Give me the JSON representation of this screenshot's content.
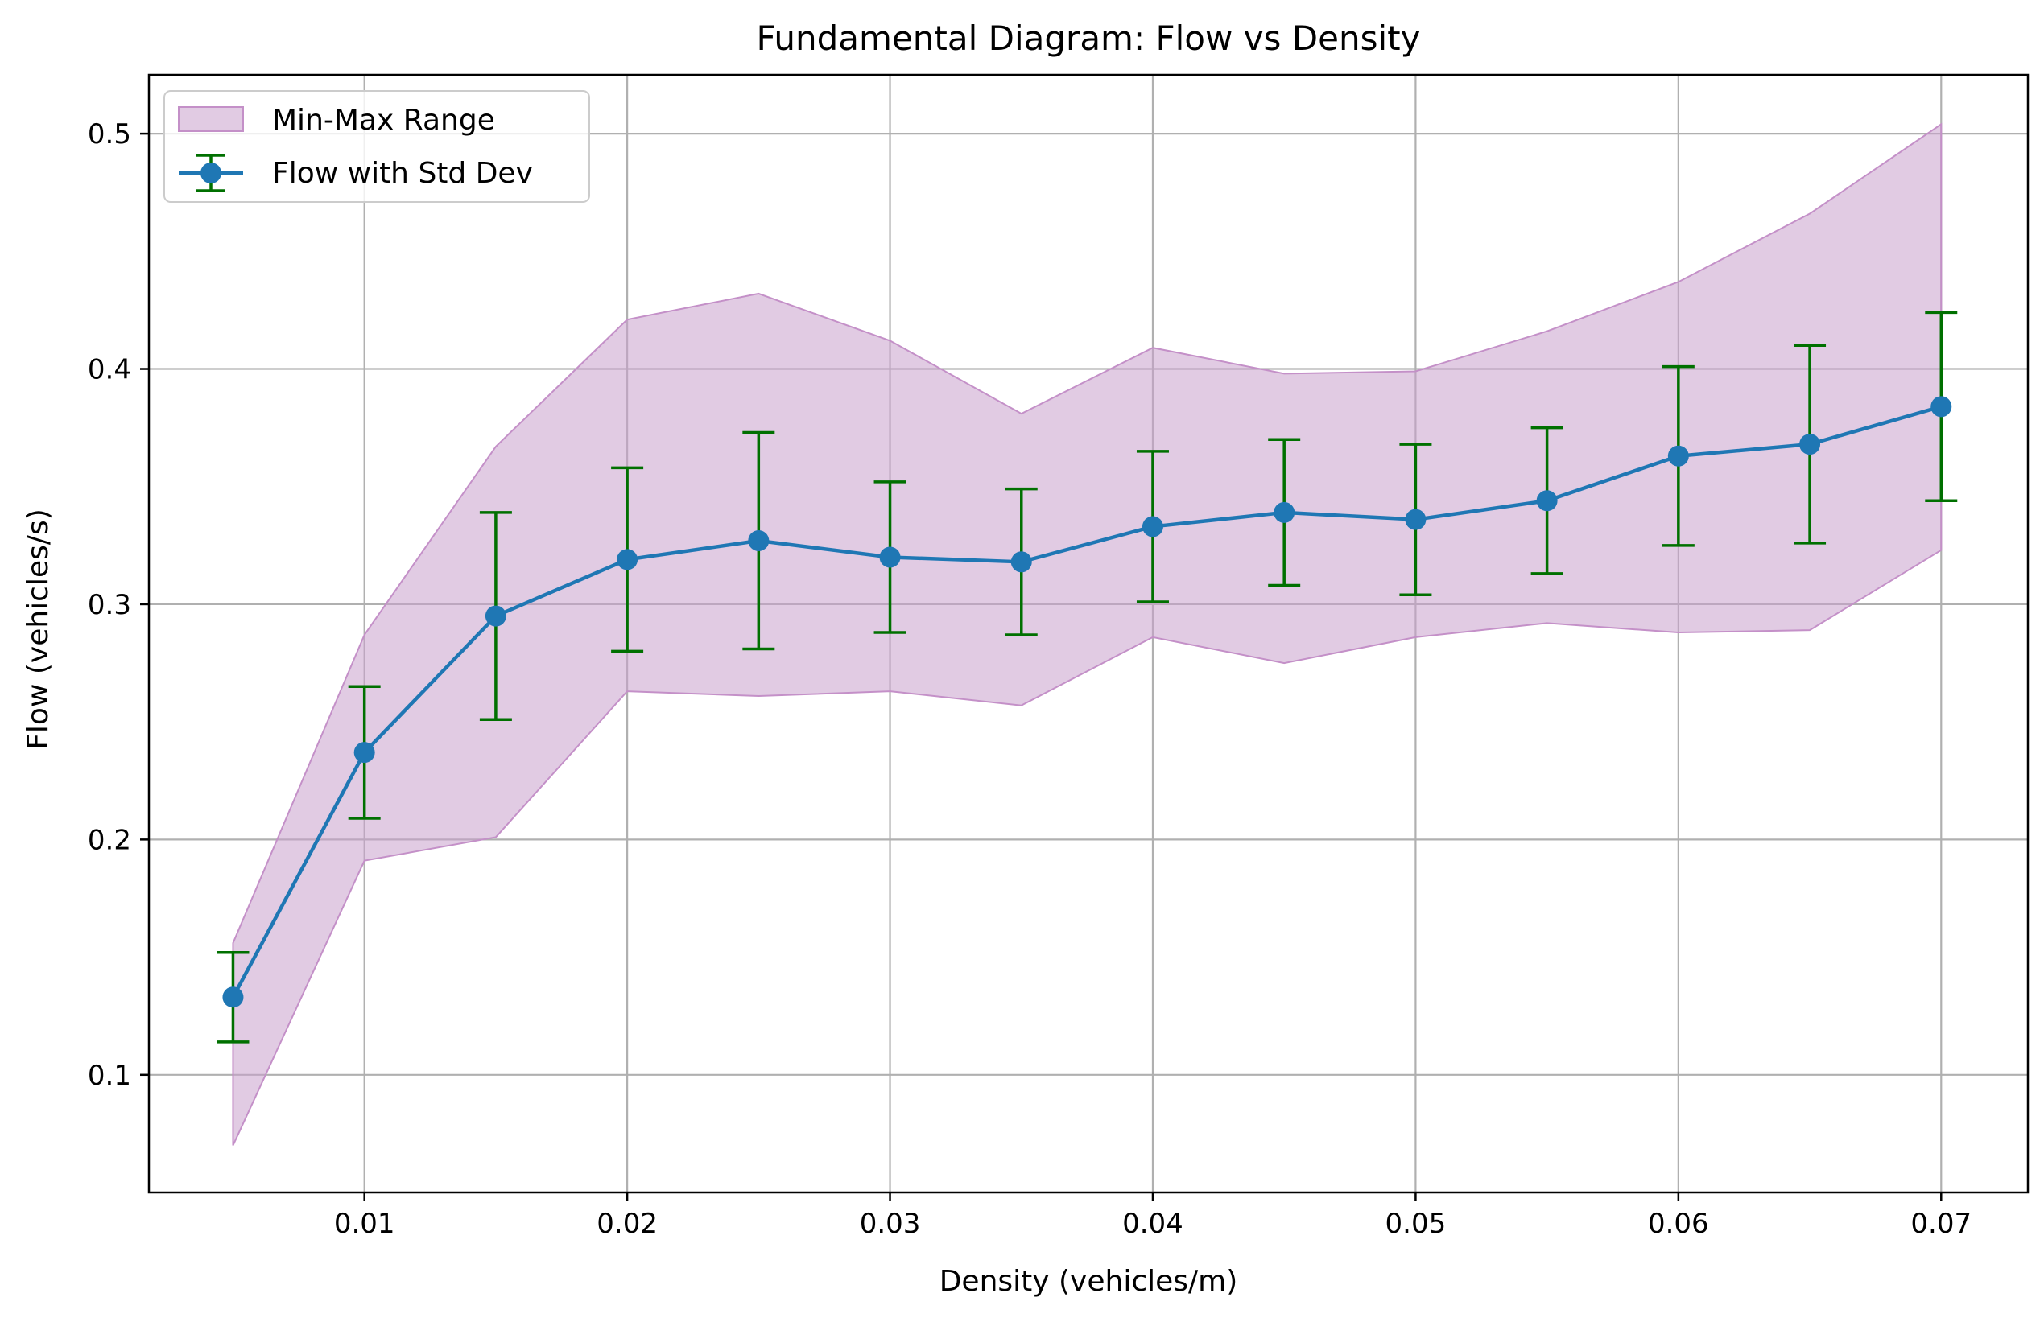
{
  "colors": {
    "band_fill": "#c8a0cc",
    "band_edge": "#c490c8",
    "line": "#1f77b4",
    "marker": "#1f77b4",
    "errorbar": "#007000",
    "grid": "#b0b0b0",
    "axes": "#000000"
  },
  "chart_data": {
    "type": "line",
    "title": "Fundamental Diagram: Flow vs Density",
    "xlabel": "Density (vehicles/m)",
    "ylabel": "Flow (vehicles/s)",
    "xlim": [
      0.0018,
      0.0733
    ],
    "ylim": [
      0.05,
      0.525
    ],
    "xticks": [
      0.01,
      0.02,
      0.03,
      0.04,
      0.05,
      0.06,
      0.07
    ],
    "xtick_labels": [
      "0.01",
      "0.02",
      "0.03",
      "0.04",
      "0.05",
      "0.06",
      "0.07"
    ],
    "yticks": [
      0.1,
      0.2,
      0.3,
      0.4,
      0.5
    ],
    "ytick_labels": [
      "0.1",
      "0.2",
      "0.3",
      "0.4",
      "0.5"
    ],
    "grid": true,
    "legend_position": "top-left",
    "legend": [
      "Min-Max Range",
      "Flow with Std Dev"
    ],
    "x": [
      0.005,
      0.01,
      0.015,
      0.02,
      0.025,
      0.03,
      0.035,
      0.04,
      0.045,
      0.05,
      0.055,
      0.06,
      0.065,
      0.07
    ],
    "series": [
      {
        "name": "Flow with Std Dev",
        "values": [
          0.133,
          0.237,
          0.295,
          0.319,
          0.327,
          0.32,
          0.318,
          0.333,
          0.339,
          0.336,
          0.344,
          0.363,
          0.368,
          0.384
        ],
        "std": [
          0.019,
          0.028,
          0.044,
          0.039,
          0.046,
          0.032,
          0.031,
          0.032,
          0.031,
          0.032,
          0.031,
          0.038,
          0.042,
          0.04
        ]
      }
    ],
    "band": {
      "name": "Min-Max Range",
      "min": [
        0.07,
        0.191,
        0.201,
        0.263,
        0.261,
        0.263,
        0.257,
        0.286,
        0.275,
        0.286,
        0.292,
        0.288,
        0.289,
        0.323
      ],
      "max": [
        0.156,
        0.287,
        0.367,
        0.421,
        0.432,
        0.412,
        0.381,
        0.409,
        0.398,
        0.399,
        0.416,
        0.437,
        0.466,
        0.504
      ]
    }
  }
}
